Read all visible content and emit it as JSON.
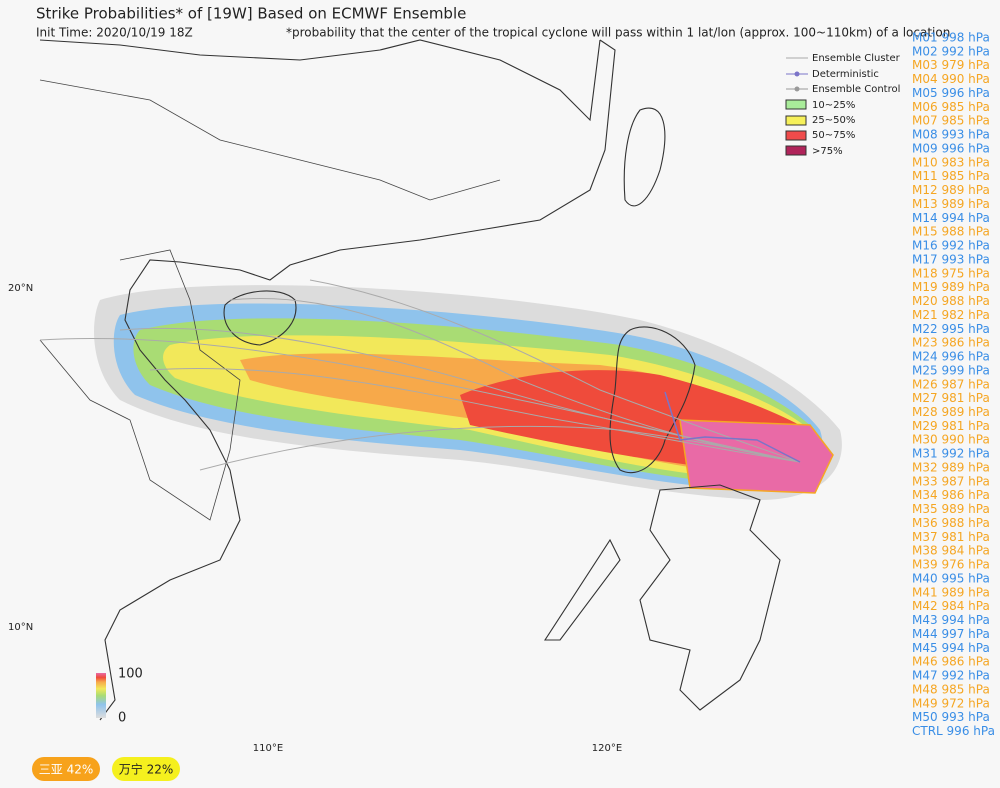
{
  "header": {
    "title": "Strike Probabilities* of [19W] Based on ECMWF Ensemble",
    "init_time": "Init Time: 2020/10/19 18Z",
    "note": "*probability that the center of the tropical cyclone will pass within 1 lat/lon (approx. 100~110km) of a location"
  },
  "legend": {
    "items": [
      "Ensemble Cluster",
      "Deterministic",
      "Ensemble Control",
      "10~25%",
      "25~50%",
      "50~75%",
      ">75%"
    ]
  },
  "colorbar": {
    "max": "100",
    "min": "0"
  },
  "axes": {
    "lat": [
      "20°N",
      "10°N"
    ],
    "lon": [
      "110°E",
      "120°E"
    ]
  },
  "members": [
    {
      "label": "M01 998 hPa",
      "color": "#3a8ee6"
    },
    {
      "label": "M02 992 hPa",
      "color": "#3a8ee6"
    },
    {
      "label": "M03 979 hPa",
      "color": "#f5a623"
    },
    {
      "label": "M04 990 hPa",
      "color": "#f5a623"
    },
    {
      "label": "M05 996 hPa",
      "color": "#3a8ee6"
    },
    {
      "label": "M06 985 hPa",
      "color": "#f5a623"
    },
    {
      "label": "M07 985 hPa",
      "color": "#f5a623"
    },
    {
      "label": "M08 993 hPa",
      "color": "#3a8ee6"
    },
    {
      "label": "M09 996 hPa",
      "color": "#3a8ee6"
    },
    {
      "label": "M10 983 hPa",
      "color": "#f5a623"
    },
    {
      "label": "M11 985 hPa",
      "color": "#f5a623"
    },
    {
      "label": "M12 989 hPa",
      "color": "#f5a623"
    },
    {
      "label": "M13 989 hPa",
      "color": "#f5a623"
    },
    {
      "label": "M14 994 hPa",
      "color": "#3a8ee6"
    },
    {
      "label": "M15 988 hPa",
      "color": "#f5a623"
    },
    {
      "label": "M16 992 hPa",
      "color": "#3a8ee6"
    },
    {
      "label": "M17 993 hPa",
      "color": "#3a8ee6"
    },
    {
      "label": "M18 975 hPa",
      "color": "#f5a623"
    },
    {
      "label": "M19 989 hPa",
      "color": "#f5a623"
    },
    {
      "label": "M20 988 hPa",
      "color": "#f5a623"
    },
    {
      "label": "M21 982 hPa",
      "color": "#f5a623"
    },
    {
      "label": "M22 995 hPa",
      "color": "#3a8ee6"
    },
    {
      "label": "M23 986 hPa",
      "color": "#f5a623"
    },
    {
      "label": "M24 996 hPa",
      "color": "#3a8ee6"
    },
    {
      "label": "M25 999 hPa",
      "color": "#3a8ee6"
    },
    {
      "label": "M26 987 hPa",
      "color": "#f5a623"
    },
    {
      "label": "M27 981 hPa",
      "color": "#f5a623"
    },
    {
      "label": "M28 989 hPa",
      "color": "#f5a623"
    },
    {
      "label": "M29 981 hPa",
      "color": "#f5a623"
    },
    {
      "label": "M30 990 hPa",
      "color": "#f5a623"
    },
    {
      "label": "M31 992 hPa",
      "color": "#3a8ee6"
    },
    {
      "label": "M32 989 hPa",
      "color": "#f5a623"
    },
    {
      "label": "M33 987 hPa",
      "color": "#f5a623"
    },
    {
      "label": "M34 986 hPa",
      "color": "#f5a623"
    },
    {
      "label": "M35 989 hPa",
      "color": "#f5a623"
    },
    {
      "label": "M36 988 hPa",
      "color": "#f5a623"
    },
    {
      "label": "M37 981 hPa",
      "color": "#f5a623"
    },
    {
      "label": "M38 984 hPa",
      "color": "#f5a623"
    },
    {
      "label": "M39 976 hPa",
      "color": "#f5a623"
    },
    {
      "label": "M40 995 hPa",
      "color": "#3a8ee6"
    },
    {
      "label": "M41 989 hPa",
      "color": "#f5a623"
    },
    {
      "label": "M42 984 hPa",
      "color": "#f5a623"
    },
    {
      "label": "M43 994 hPa",
      "color": "#3a8ee6"
    },
    {
      "label": "M44 997 hPa",
      "color": "#3a8ee6"
    },
    {
      "label": "M45 994 hPa",
      "color": "#3a8ee6"
    },
    {
      "label": "M46 986 hPa",
      "color": "#f5a623"
    },
    {
      "label": "M47 992 hPa",
      "color": "#3a8ee6"
    },
    {
      "label": "M48 985 hPa",
      "color": "#f5a623"
    },
    {
      "label": "M49 972 hPa",
      "color": "#f5a623"
    },
    {
      "label": "M50 993 hPa",
      "color": "#3a8ee6"
    },
    {
      "label": "CTRL 996 hPa",
      "color": "#3a8ee6"
    }
  ],
  "badges": [
    {
      "label": "三亚 42%",
      "color": "#f7a21b"
    },
    {
      "label": "万宁 22%",
      "color": "#f5f01e"
    }
  ]
}
